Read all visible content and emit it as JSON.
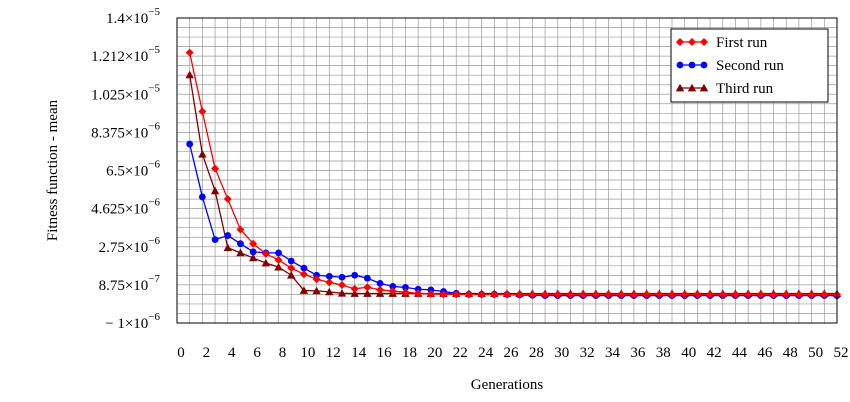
{
  "chart_data": {
    "type": "line",
    "title": "",
    "xlabel": "Generations",
    "ylabel": "Fitness function - mean",
    "xlim": [
      0,
      52
    ],
    "ylim": [
      -1e-06,
      1.4e-05
    ],
    "grid": true,
    "legend_position": "top-right",
    "x_ticks": [
      0,
      2,
      4,
      6,
      8,
      10,
      12,
      14,
      16,
      18,
      20,
      22,
      24,
      26,
      28,
      30,
      32,
      34,
      36,
      38,
      40,
      42,
      44,
      46,
      48,
      50,
      52
    ],
    "y_ticks": [
      {
        "value": -1e-06,
        "prefix": "− 1×10",
        "exp": "−6"
      },
      {
        "value": 8.75e-07,
        "prefix": "8.75×10",
        "exp": "−7"
      },
      {
        "value": 2.75e-06,
        "prefix": "2.75×10",
        "exp": "−6"
      },
      {
        "value": 4.625e-06,
        "prefix": "4.625×10",
        "exp": "−6"
      },
      {
        "value": 6.5e-06,
        "prefix": "6.5×10",
        "exp": "−6"
      },
      {
        "value": 8.375e-06,
        "prefix": "8.375×10",
        "exp": "−6"
      },
      {
        "value": 1.025e-05,
        "prefix": "1.025×10",
        "exp": "−5"
      },
      {
        "value": 1.212e-05,
        "prefix": "1.212×10",
        "exp": "−5"
      },
      {
        "value": 1.4e-05,
        "prefix": "1.4×10",
        "exp": "−5"
      }
    ],
    "x": [
      1,
      2,
      3,
      4,
      5,
      6,
      7,
      8,
      9,
      10,
      11,
      12,
      13,
      14,
      15,
      16,
      17,
      18,
      19,
      20,
      21,
      22,
      23,
      24,
      25,
      26,
      27,
      28,
      29,
      30,
      31,
      32,
      33,
      34,
      35,
      36,
      37,
      38,
      39,
      40,
      41,
      42,
      43,
      44,
      45,
      46,
      47,
      48,
      49,
      50,
      51,
      52
    ],
    "series": [
      {
        "name": "First run",
        "color": "#ff0000",
        "marker": "diamond",
        "values": [
          1.23e-05,
          9.4e-06,
          6.6e-06,
          5.1e-06,
          3.6e-06,
          2.9e-06,
          2.4e-06,
          2.1e-06,
          1.7e-06,
          1.4e-06,
          1.15e-06,
          1e-06,
          8.7e-07,
          6.8e-07,
          7.6e-07,
          6.3e-07,
          5.7e-07,
          5.1e-07,
          4.6e-07,
          4.3e-07,
          4.1e-07,
          4.1e-07,
          4e-07,
          4e-07,
          4e-07,
          4e-07,
          4e-07,
          4e-07,
          4e-07,
          4e-07,
          4e-07,
          4e-07,
          4e-07,
          4e-07,
          4e-07,
          4e-07,
          4e-07,
          4e-07,
          4e-07,
          4e-07,
          4e-07,
          4e-07,
          4e-07,
          4e-07,
          4e-07,
          4e-07,
          4e-07,
          4e-07,
          4e-07,
          4e-07,
          4e-07,
          4e-07
        ]
      },
      {
        "name": "Second run",
        "color": "#0000ff",
        "marker": "circle",
        "values": [
          7.8e-06,
          5.2e-06,
          3.1e-06,
          3.3e-06,
          2.9e-06,
          2.5e-06,
          2.45e-06,
          2.45e-06,
          2.05e-06,
          1.7e-06,
          1.35e-06,
          1.3e-06,
          1.25e-06,
          1.35e-06,
          1.2e-06,
          9.5e-07,
          8e-07,
          7.5e-07,
          6.6e-07,
          6.3e-07,
          5.5e-07,
          4.6e-07,
          4.1e-07,
          4.1e-07,
          4.1e-07,
          4e-07,
          3.8e-07,
          3.6e-07,
          3.5e-07,
          3.5e-07,
          3.5e-07,
          3.5e-07,
          3.5e-07,
          3.5e-07,
          3.5e-07,
          3.5e-07,
          3.5e-07,
          3.5e-07,
          3.5e-07,
          3.5e-07,
          3.5e-07,
          3.5e-07,
          3.5e-07,
          3.5e-07,
          3.5e-07,
          3.5e-07,
          3.5e-07,
          3.5e-07,
          3.5e-07,
          3.5e-07,
          3.5e-07,
          3.5e-07
        ]
      },
      {
        "name": "Third run",
        "color": "#800000",
        "marker": "triangle",
        "values": [
          1.12e-05,
          7.3e-06,
          5.5e-06,
          2.7e-06,
          2.45e-06,
          2.2e-06,
          1.95e-06,
          1.75e-06,
          1.35e-06,
          6e-07,
          5.8e-07,
          5.3e-07,
          4.6e-07,
          4.5e-07,
          4.5e-07,
          4.5e-07,
          4.5e-07,
          4.5e-07,
          4.5e-07,
          4.5e-07,
          4.5e-07,
          4.5e-07,
          4.5e-07,
          4.5e-07,
          4.5e-07,
          4.5e-07,
          4.5e-07,
          4.5e-07,
          4.5e-07,
          4.5e-07,
          4.5e-07,
          4.5e-07,
          4.5e-07,
          4.5e-07,
          4.5e-07,
          4.5e-07,
          4.5e-07,
          4.5e-07,
          4.5e-07,
          4.5e-07,
          4.5e-07,
          4.5e-07,
          4.5e-07,
          4.5e-07,
          4.5e-07,
          4.5e-07,
          4.5e-07,
          4.5e-07,
          4.5e-07,
          4.5e-07,
          4.5e-07,
          4.5e-07
        ]
      }
    ]
  }
}
